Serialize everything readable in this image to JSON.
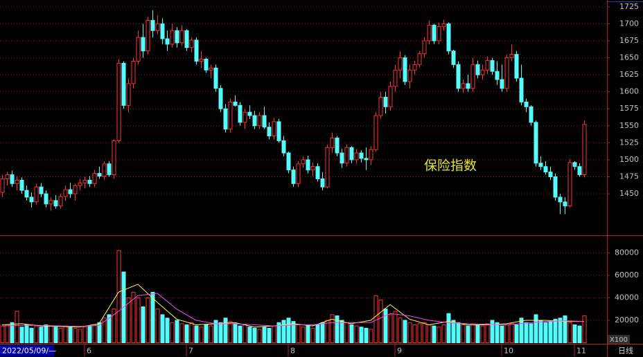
{
  "chart_data": {
    "type": "candlestick",
    "title": "保险指数",
    "start_date": "2022/05/09/—",
    "period": "日线",
    "volume_unit": "X100",
    "up_color": "#ff3232",
    "down_color": "#54fcfc",
    "ylim": [
      1389,
      1735
    ],
    "yticks": [
      1450,
      1475,
      1500,
      1525,
      1550,
      1575,
      1600,
      1625,
      1650,
      1675,
      1700,
      1725
    ],
    "volume_ylim": [
      0,
      95000
    ],
    "volume_yticks": [
      20000,
      40000,
      60000,
      80000
    ],
    "xticks": [
      {
        "value": 17,
        "label": "6"
      },
      {
        "value": 38,
        "label": "7"
      },
      {
        "value": 59,
        "label": "8"
      },
      {
        "value": 81,
        "label": "9"
      },
      {
        "value": 103,
        "label": "10"
      },
      {
        "value": 118,
        "label": "11"
      }
    ],
    "candles": [
      [
        1452,
        1478,
        1445,
        1472
      ],
      [
        1472,
        1482,
        1462,
        1478
      ],
      [
        1478,
        1484,
        1460,
        1465
      ],
      [
        1465,
        1476,
        1455,
        1470
      ],
      [
        1470,
        1474,
        1450,
        1455
      ],
      [
        1455,
        1462,
        1440,
        1445
      ],
      [
        1445,
        1452,
        1430,
        1438
      ],
      [
        1438,
        1465,
        1434,
        1460
      ],
      [
        1460,
        1466,
        1445,
        1450
      ],
      [
        1450,
        1455,
        1430,
        1435
      ],
      [
        1435,
        1445,
        1425,
        1440
      ],
      [
        1440,
        1448,
        1428,
        1432
      ],
      [
        1432,
        1450,
        1428,
        1446
      ],
      [
        1446,
        1462,
        1440,
        1456
      ],
      [
        1456,
        1466,
        1444,
        1450
      ],
      [
        1450,
        1465,
        1440,
        1462
      ],
      [
        1462,
        1472,
        1455,
        1466
      ],
      [
        1466,
        1475,
        1458,
        1470
      ],
      [
        1470,
        1476,
        1460,
        1465
      ],
      [
        1465,
        1485,
        1460,
        1480
      ],
      [
        1480,
        1490,
        1472,
        1476
      ],
      [
        1476,
        1498,
        1470,
        1494
      ],
      [
        1494,
        1498,
        1475,
        1478
      ],
      [
        1478,
        1530,
        1472,
        1528
      ],
      [
        1528,
        1648,
        1525,
        1642
      ],
      [
        1642,
        1645,
        1575,
        1580
      ],
      [
        1580,
        1620,
        1570,
        1612
      ],
      [
        1612,
        1650,
        1605,
        1645
      ],
      [
        1645,
        1690,
        1640,
        1680
      ],
      [
        1680,
        1700,
        1650,
        1660
      ],
      [
        1660,
        1710,
        1655,
        1705
      ],
      [
        1705,
        1720,
        1680,
        1690
      ],
      [
        1690,
        1712,
        1685,
        1700
      ],
      [
        1700,
        1708,
        1670,
        1678
      ],
      [
        1678,
        1690,
        1660,
        1670
      ],
      [
        1670,
        1700,
        1665,
        1690
      ],
      [
        1690,
        1695,
        1665,
        1672
      ],
      [
        1672,
        1698,
        1668,
        1690
      ],
      [
        1690,
        1692,
        1660,
        1665
      ],
      [
        1665,
        1680,
        1658,
        1676
      ],
      [
        1676,
        1680,
        1640,
        1645
      ],
      [
        1645,
        1660,
        1635,
        1648
      ],
      [
        1648,
        1650,
        1628,
        1632
      ],
      [
        1632,
        1640,
        1620,
        1635
      ],
      [
        1635,
        1640,
        1600,
        1605
      ],
      [
        1605,
        1610,
        1570,
        1575
      ],
      [
        1575,
        1582,
        1540,
        1545
      ],
      [
        1545,
        1590,
        1540,
        1585
      ],
      [
        1585,
        1595,
        1578,
        1580
      ],
      [
        1580,
        1585,
        1550,
        1555
      ],
      [
        1555,
        1575,
        1545,
        1570
      ],
      [
        1570,
        1580,
        1560,
        1565
      ],
      [
        1565,
        1572,
        1545,
        1550
      ],
      [
        1550,
        1570,
        1545,
        1565
      ],
      [
        1565,
        1578,
        1545,
        1548
      ],
      [
        1548,
        1555,
        1530,
        1535
      ],
      [
        1535,
        1562,
        1530,
        1556
      ],
      [
        1556,
        1560,
        1525,
        1528
      ],
      [
        1528,
        1535,
        1505,
        1510
      ],
      [
        1510,
        1512,
        1480,
        1485
      ],
      [
        1485,
        1490,
        1460,
        1465
      ],
      [
        1465,
        1498,
        1460,
        1494
      ],
      [
        1494,
        1505,
        1488,
        1500
      ],
      [
        1500,
        1506,
        1480,
        1485
      ],
      [
        1485,
        1496,
        1476,
        1490
      ],
      [
        1490,
        1495,
        1468,
        1472
      ],
      [
        1472,
        1482,
        1455,
        1460
      ],
      [
        1460,
        1522,
        1458,
        1518
      ],
      [
        1518,
        1540,
        1510,
        1532
      ],
      [
        1532,
        1535,
        1505,
        1510
      ],
      [
        1510,
        1516,
        1488,
        1495
      ],
      [
        1495,
        1522,
        1490,
        1518
      ],
      [
        1518,
        1520,
        1495,
        1500
      ],
      [
        1500,
        1516,
        1494,
        1510
      ],
      [
        1510,
        1514,
        1496,
        1502
      ],
      [
        1502,
        1518,
        1485,
        1500
      ],
      [
        1500,
        1520,
        1492,
        1515
      ],
      [
        1515,
        1570,
        1512,
        1565
      ],
      [
        1565,
        1600,
        1560,
        1592
      ],
      [
        1592,
        1600,
        1568,
        1578
      ],
      [
        1578,
        1615,
        1572,
        1608
      ],
      [
        1608,
        1640,
        1600,
        1632
      ],
      [
        1632,
        1660,
        1620,
        1650
      ],
      [
        1650,
        1654,
        1610,
        1615
      ],
      [
        1615,
        1640,
        1605,
        1632
      ],
      [
        1632,
        1645,
        1625,
        1640
      ],
      [
        1640,
        1660,
        1636,
        1656
      ],
      [
        1656,
        1680,
        1650,
        1675
      ],
      [
        1675,
        1705,
        1670,
        1698
      ],
      [
        1698,
        1700,
        1670,
        1675
      ],
      [
        1675,
        1702,
        1670,
        1696
      ],
      [
        1696,
        1706,
        1690,
        1700
      ],
      [
        1700,
        1702,
        1655,
        1660
      ],
      [
        1660,
        1662,
        1635,
        1640
      ],
      [
        1640,
        1645,
        1600,
        1605
      ],
      [
        1605,
        1618,
        1598,
        1612
      ],
      [
        1612,
        1625,
        1600,
        1605
      ],
      [
        1605,
        1650,
        1600,
        1640
      ],
      [
        1640,
        1646,
        1620,
        1625
      ],
      [
        1625,
        1640,
        1618,
        1632
      ],
      [
        1632,
        1652,
        1626,
        1646
      ],
      [
        1646,
        1650,
        1625,
        1630
      ],
      [
        1630,
        1645,
        1610,
        1618
      ],
      [
        1618,
        1640,
        1600,
        1605
      ],
      [
        1605,
        1655,
        1600,
        1650
      ],
      [
        1650,
        1670,
        1645,
        1655
      ],
      [
        1655,
        1660,
        1615,
        1620
      ],
      [
        1620,
        1640,
        1580,
        1585
      ],
      [
        1585,
        1590,
        1570,
        1578
      ],
      [
        1578,
        1580,
        1550,
        1555
      ],
      [
        1555,
        1558,
        1490,
        1495
      ],
      [
        1495,
        1505,
        1485,
        1490
      ],
      [
        1490,
        1498,
        1478,
        1482
      ],
      [
        1482,
        1490,
        1470,
        1475
      ],
      [
        1475,
        1480,
        1440,
        1445
      ],
      [
        1445,
        1450,
        1420,
        1438
      ],
      [
        1438,
        1445,
        1420,
        1432
      ],
      [
        1432,
        1500,
        1430,
        1496
      ],
      [
        1496,
        1498,
        1485,
        1490
      ],
      [
        1490,
        1495,
        1475,
        1478
      ],
      [
        1478,
        1558,
        1474,
        1552
      ]
    ],
    "volumes": [
      15000,
      16000,
      18000,
      28000,
      14000,
      16000,
      13000,
      15000,
      14000,
      16000,
      15000,
      14000,
      13000,
      15000,
      14000,
      13000,
      12000,
      14000,
      15000,
      16000,
      18000,
      22000,
      25000,
      30000,
      82000,
      63000,
      40000,
      45000,
      40000,
      32000,
      40000,
      45000,
      30000,
      25000,
      22000,
      18000,
      20000,
      17000,
      16000,
      18000,
      15000,
      14000,
      16000,
      15000,
      20000,
      18000,
      22000,
      19000,
      17000,
      15000,
      16000,
      14000,
      13000,
      12000,
      14000,
      13000,
      15000,
      18000,
      20000,
      22000,
      19000,
      16000,
      14000,
      15000,
      13000,
      16000,
      18000,
      20000,
      25000,
      24000,
      20000,
      18000,
      16000,
      15000,
      14000,
      13000,
      12000,
      42000,
      38000,
      30000,
      25000,
      28000,
      22000,
      20000,
      18000,
      16000,
      17000,
      18000,
      16000,
      15000,
      14000,
      16000,
      26000,
      20000,
      18000,
      16000,
      15000,
      17000,
      16000,
      15000,
      17000,
      20000,
      18000,
      15000,
      16000,
      17000,
      16000,
      22000,
      18000,
      17000,
      25000,
      20000,
      18000,
      19000,
      21000,
      22000,
      24000,
      18000,
      16000,
      15000,
      24000
    ],
    "volume_ma": [
      {
        "color": "#ffff40",
        "x": [
          0,
          4,
          8,
          12,
          16,
          20,
          24,
          28,
          32,
          36,
          40,
          44,
          48,
          52,
          56,
          60,
          64,
          68,
          72,
          76,
          80,
          84,
          88,
          92,
          96,
          100,
          104,
          108,
          112,
          116,
          120
        ],
        "values": [
          16000,
          17000,
          15000,
          14500,
          14000,
          17000,
          45000,
          52000,
          36000,
          21000,
          16000,
          17000,
          18000,
          14000,
          15000,
          17000,
          15000,
          21000,
          17000,
          20000,
          34000,
          21000,
          16000,
          19000,
          16000,
          16000,
          17000,
          20000,
          20000,
          19000,
          19000
        ]
      },
      {
        "color": "#ff40ff",
        "x": [
          0,
          4,
          8,
          12,
          16,
          20,
          24,
          28,
          32,
          36,
          40,
          44,
          48,
          52,
          56,
          60,
          64,
          68,
          72,
          76,
          80,
          84,
          88,
          92,
          96,
          100,
          104,
          108,
          112,
          116,
          120
        ],
        "values": [
          15000,
          15500,
          15500,
          15000,
          14500,
          15500,
          28000,
          42000,
          44000,
          30000,
          20000,
          17000,
          17000,
          16000,
          15000,
          16000,
          16000,
          18000,
          18000,
          18000,
          26000,
          24000,
          20000,
          18000,
          17000,
          16500,
          16000,
          17500,
          19000,
          19500,
          19000
        ]
      }
    ]
  }
}
